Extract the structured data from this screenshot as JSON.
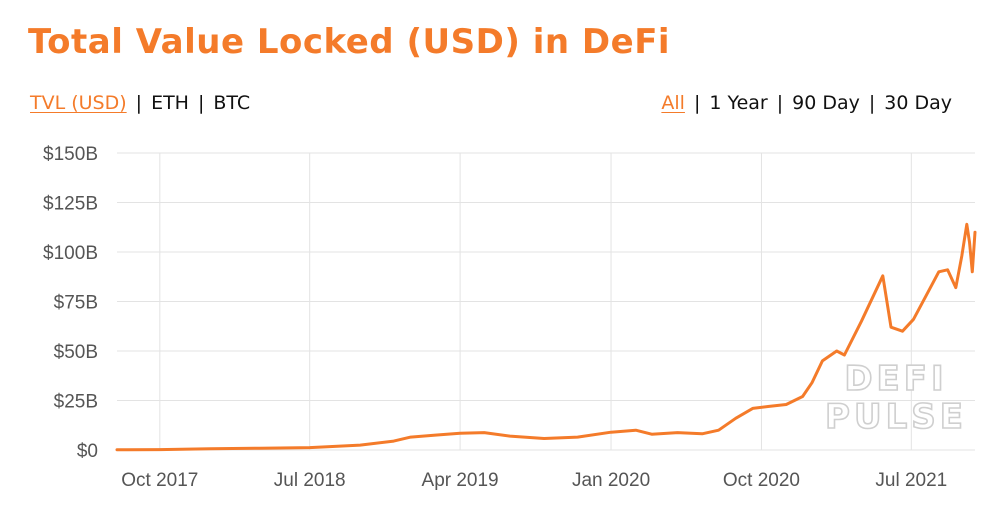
{
  "title": "Total Value Locked (USD) in DeFi",
  "colors": {
    "accent": "#F47B2A",
    "grid": "#e3e3e3",
    "tick": "#555555"
  },
  "metric_tabs": [
    {
      "label": "TVL (USD)",
      "active": true
    },
    {
      "label": "ETH",
      "active": false
    },
    {
      "label": "BTC",
      "active": false
    }
  ],
  "range_tabs": [
    {
      "label": "All",
      "active": true
    },
    {
      "label": "1 Year",
      "active": false
    },
    {
      "label": "90 Day",
      "active": false
    },
    {
      "label": "30 Day",
      "active": false
    }
  ],
  "watermark": [
    "DEFI",
    "PULSE"
  ],
  "chart_data": {
    "type": "line",
    "grid": true,
    "legend": "none",
    "ylim": [
      0,
      150
    ],
    "yticks": [
      {
        "value": 0,
        "label": "$0"
      },
      {
        "value": 25,
        "label": "$25B"
      },
      {
        "value": 50,
        "label": "$50B"
      },
      {
        "value": 75,
        "label": "$75B"
      },
      {
        "value": 100,
        "label": "$100B"
      },
      {
        "value": 125,
        "label": "$125B"
      },
      {
        "value": 150,
        "label": "$150B"
      }
    ],
    "xlim": [
      "2017-07-15",
      "2021-10-25"
    ],
    "xticks": [
      {
        "value": "2017-10-01",
        "label": "Oct 2017"
      },
      {
        "value": "2018-07-01",
        "label": "Jul 2018"
      },
      {
        "value": "2019-04-01",
        "label": "Apr 2019"
      },
      {
        "value": "2020-01-01",
        "label": "Jan 2020"
      },
      {
        "value": "2020-10-01",
        "label": "Oct 2020"
      },
      {
        "value": "2021-07-01",
        "label": "Jul 2021"
      }
    ],
    "series": [
      {
        "color": "#F47B2A",
        "points": [
          [
            "2017-07-15",
            0.1
          ],
          [
            "2017-10-01",
            0.2
          ],
          [
            "2018-01-01",
            0.6
          ],
          [
            "2018-04-01",
            0.9
          ],
          [
            "2018-07-01",
            1.2
          ],
          [
            "2018-10-01",
            2.5
          ],
          [
            "2018-12-01",
            4.5
          ],
          [
            "2019-01-01",
            6.5
          ],
          [
            "2019-02-15",
            7.5
          ],
          [
            "2019-04-01",
            8.5
          ],
          [
            "2019-05-15",
            8.8
          ],
          [
            "2019-07-01",
            7.0
          ],
          [
            "2019-09-01",
            5.8
          ],
          [
            "2019-11-01",
            6.5
          ],
          [
            "2020-01-01",
            9.0
          ],
          [
            "2020-02-15",
            10.0
          ],
          [
            "2020-03-15",
            8.0
          ],
          [
            "2020-05-01",
            8.8
          ],
          [
            "2020-06-15",
            8.2
          ],
          [
            "2020-07-15",
            10.0
          ],
          [
            "2020-08-15",
            16.0
          ],
          [
            "2020-09-15",
            21.0
          ],
          [
            "2020-10-15",
            22.0
          ],
          [
            "2020-11-15",
            23.0
          ],
          [
            "2020-12-15",
            27.0
          ],
          [
            "2021-01-01",
            34.0
          ],
          [
            "2021-01-20",
            45.0
          ],
          [
            "2021-02-15",
            50.0
          ],
          [
            "2021-03-01",
            48.0
          ],
          [
            "2021-04-01",
            65.0
          ],
          [
            "2021-05-10",
            88.0
          ],
          [
            "2021-05-25",
            62.0
          ],
          [
            "2021-06-15",
            60.0
          ],
          [
            "2021-07-05",
            66.0
          ],
          [
            "2021-08-01",
            80.0
          ],
          [
            "2021-08-20",
            90.0
          ],
          [
            "2021-09-05",
            91.0
          ],
          [
            "2021-09-20",
            82.0
          ],
          [
            "2021-10-01",
            98.0
          ],
          [
            "2021-10-10",
            114.0
          ],
          [
            "2021-10-15",
            105.0
          ],
          [
            "2021-10-20",
            90.0
          ],
          [
            "2021-10-25",
            110.0
          ]
        ]
      }
    ]
  }
}
